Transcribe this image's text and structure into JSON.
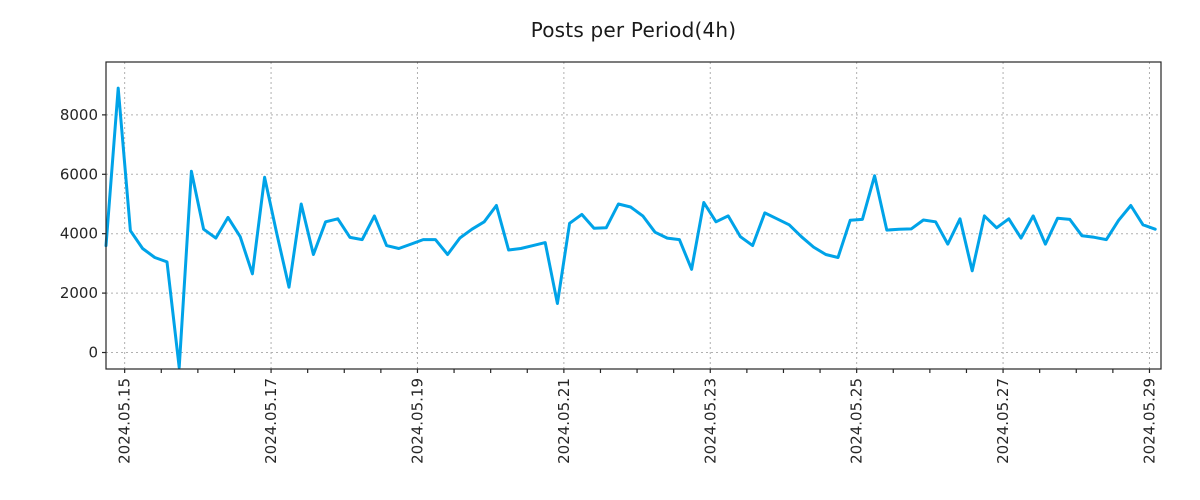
{
  "title": "Posts per Period(4h)",
  "chart_data": {
    "type": "line",
    "title": "Posts per Period(4h)",
    "period_per_point": "4h",
    "legend": "none",
    "grid": "dotted",
    "line_color": "#00A3E8",
    "axis_color": "#262626",
    "grid_color": "#b0b0b0",
    "x_tick_labels": [
      "2024.05.15",
      "2024.05.17",
      "2024.05.19",
      "2024.05.21",
      "2024.05.23",
      "2024.05.25",
      "2024.05.27",
      "2024.05.29"
    ],
    "x_label_point_index": [
      1.53,
      13.53,
      25.53,
      37.53,
      49.53,
      61.53,
      73.53,
      85.53
    ],
    "minor_tick_every_points": 3,
    "y_ticks": [
      0,
      2000,
      4000,
      6000,
      8000
    ],
    "ylim": [
      -555,
      9780
    ],
    "values": [
      3600,
      8900,
      4100,
      3500,
      3200,
      3050,
      -500,
      6100,
      4150,
      3850,
      4550,
      3900,
      2650,
      5900,
      4000,
      2200,
      5000,
      3300,
      4400,
      4500,
      3875,
      3800,
      4600,
      3600,
      3500,
      3650,
      3800,
      3800,
      3300,
      3850,
      4150,
      4400,
      4950,
      3450,
      3500,
      3600,
      3700,
      1650,
      4350,
      4650,
      4180,
      4200,
      5000,
      4900,
      4600,
      4050,
      3850,
      3800,
      2800,
      5050,
      4400,
      4600,
      3900,
      3600,
      4700,
      4500,
      4300,
      3900,
      3550,
      3300,
      3200,
      4450,
      4480,
      5950,
      4120,
      4150,
      4160,
      4460,
      4400,
      3650,
      4500,
      2750,
      4600,
      4200,
      4500,
      3850,
      4600,
      3650,
      4520,
      4480,
      3930,
      3880,
      3800,
      4450,
      4950,
      4300,
      4150
    ]
  }
}
